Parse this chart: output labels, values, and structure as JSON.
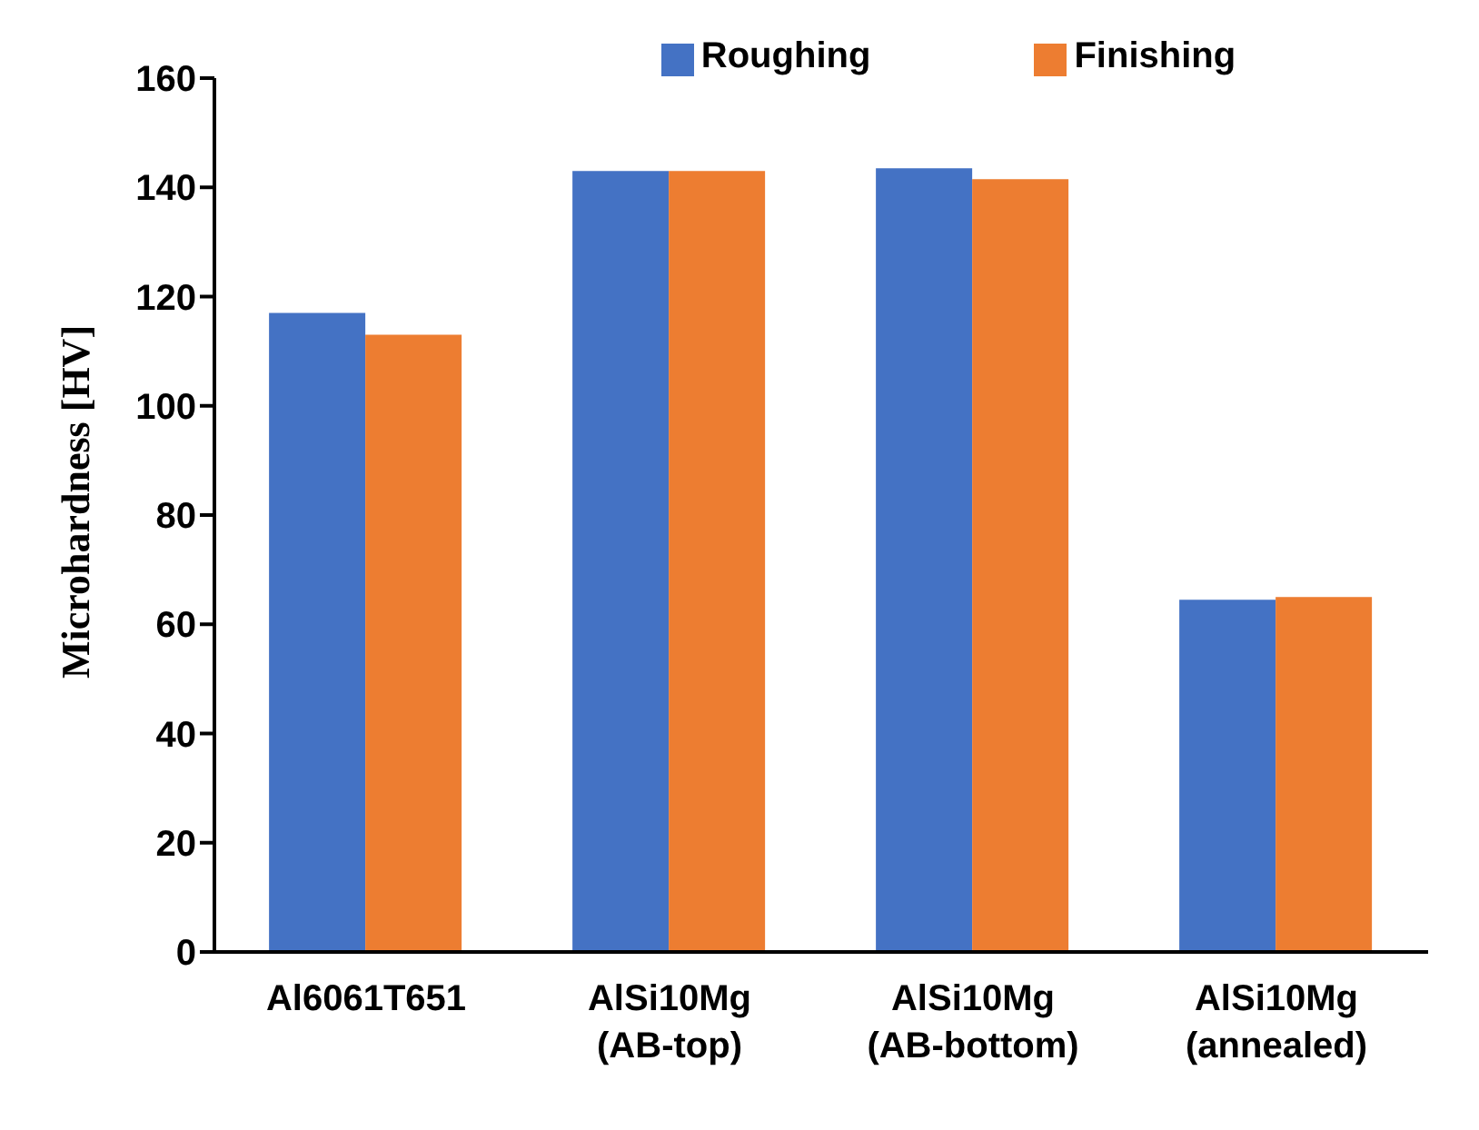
{
  "chart_data": {
    "type": "bar",
    "ylabel": "Microhardness [HV]",
    "categories": [
      "Al6061T651",
      "AlSi10Mg (AB-top)",
      "AlSi10Mg (AB-bottom)",
      "AlSi10Mg (annealed)"
    ],
    "series": [
      {
        "name": "Roughing",
        "color": "#4472c4",
        "values": [
          117,
          143,
          143.5,
          64.5
        ]
      },
      {
        "name": "Finishing",
        "color": "#ed7d31",
        "values": [
          113,
          143,
          141.5,
          65
        ]
      }
    ],
    "ylim": [
      0,
      160
    ],
    "yticks": [
      0,
      20,
      40,
      60,
      80,
      100,
      120,
      140,
      160
    ],
    "grid": false,
    "legend": "top"
  }
}
